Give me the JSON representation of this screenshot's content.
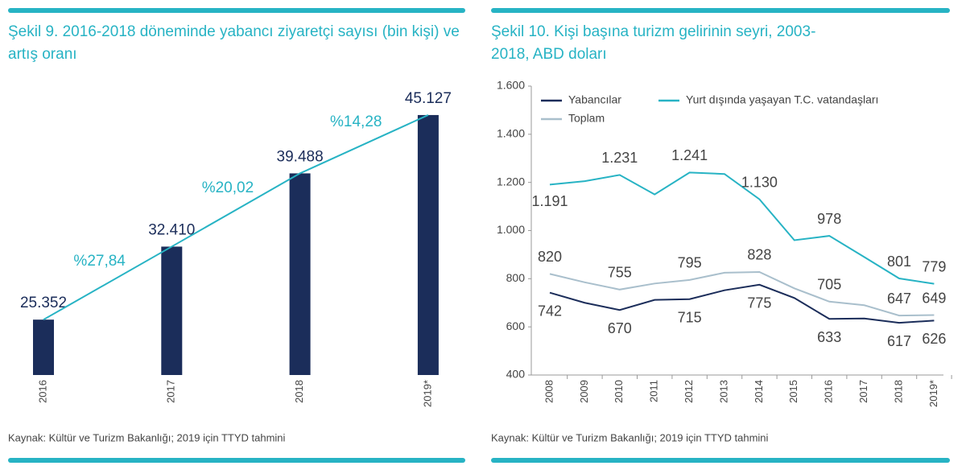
{
  "chart_data": [
    {
      "type": "bar",
      "title": "Şekil 9. 2016-2018 döneminde yabancı ziyaretçi sayısı (bin kişi) ve artış oranı",
      "source": "Kaynak: Kültür ve Turizm Bakanlığı; 2019 için TTYD tahmini",
      "categories": [
        "2016",
        "2017",
        "2018",
        "2019*"
      ],
      "values": [
        25352,
        32410,
        39488,
        45127
      ],
      "value_labels": [
        "25.352",
        "32.410",
        "39.488",
        "45.127"
      ],
      "color": "#1b2d5a",
      "ylim": [
        20000,
        48000
      ],
      "growth": {
        "values": [
          27.84,
          20.02,
          14.28
        ],
        "value_labels": [
          "%27,84",
          "%20,02",
          "%14,28"
        ],
        "color": "#27b3c4"
      }
    },
    {
      "type": "line",
      "title": "Şekil 10. Kişi başına turizm gelirinin seyri, 2003-2018, ABD doları",
      "source": "Kaynak: Kültür ve Turizm Bakanlığı; 2019 için TTYD tahmini",
      "categories": [
        "2008",
        "2009",
        "2010",
        "2011",
        "2012",
        "2013",
        "2014",
        "2015",
        "2016",
        "2017",
        "2018",
        "2019*"
      ],
      "ylim": [
        400,
        1600
      ],
      "yticks": [
        400,
        600,
        800,
        {
          "value": 1000,
          "label": "1.000"
        },
        {
          "value": 1200,
          "label": "1.200"
        },
        {
          "value": 1400,
          "label": "1.400"
        },
        {
          "value": 1600,
          "label": "1.600"
        }
      ],
      "grid": false,
      "legend": "top-left",
      "series": [
        {
          "name": "Yabancılar",
          "color": "#1b2d5a",
          "values": [
            742,
            700,
            670,
            712,
            715,
            752,
            775,
            720,
            633,
            635,
            617,
            626
          ],
          "value_labels": [
            "742",
            null,
            "670",
            null,
            "715",
            null,
            "775",
            null,
            "633",
            null,
            "617",
            "626"
          ]
        },
        {
          "name": "Yurt dışında yaşayan T.C. vatandaşları",
          "color": "#27b3c4",
          "values": [
            1191,
            1205,
            1231,
            1150,
            1241,
            1235,
            1130,
            960,
            978,
            890,
            801,
            779
          ],
          "value_labels": [
            "1.191",
            null,
            "1.231",
            null,
            "1.241",
            null,
            "1.130",
            null,
            "978",
            null,
            "801",
            "779"
          ]
        },
        {
          "name": "Toplam",
          "color": "#a9bfcc",
          "values": [
            820,
            785,
            755,
            780,
            795,
            825,
            828,
            760,
            705,
            690,
            647,
            649
          ],
          "value_labels": [
            "820",
            null,
            "755",
            null,
            "795",
            null,
            "828",
            null,
            "705",
            null,
            "647",
            "649"
          ]
        }
      ]
    }
  ]
}
